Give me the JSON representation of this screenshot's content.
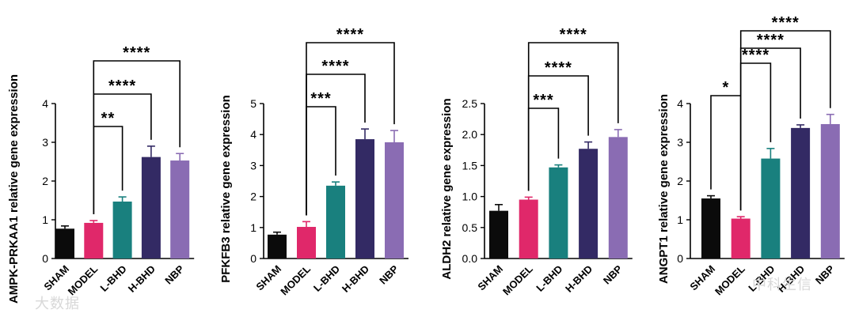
{
  "colors": {
    "SHAM": "#0b0b0b",
    "MODEL": "#e0286a",
    "L-BHD": "#19807e",
    "H-BHD": "#332a64",
    "NBP": "#8a6cb3",
    "axis": "#000000"
  },
  "watermarks": [
    "大数据",
    "中科生信"
  ],
  "chart_data": [
    {
      "type": "bar",
      "ylabel": "AMPK-PRKAA1 relative gene expression",
      "categories": [
        "SHAM",
        "MODEL",
        "L-BHD",
        "H-BHD",
        "NBP"
      ],
      "values": [
        0.77,
        0.92,
        1.47,
        2.62,
        2.53
      ],
      "errors": [
        0.07,
        0.06,
        0.12,
        0.28,
        0.18
      ],
      "ylim": [
        0,
        4
      ],
      "yticks": [
        "0",
        "1",
        "2",
        "3",
        "4"
      ],
      "brackets": [
        {
          "from": 1,
          "to": 2,
          "label": "**"
        },
        {
          "from": 1,
          "to": 3,
          "label": "****"
        },
        {
          "from": 1,
          "to": 4,
          "label": "****"
        }
      ]
    },
    {
      "type": "bar",
      "ylabel": "PFKFB3 relative gene expression",
      "categories": [
        "SHAM",
        "MODEL",
        "L-BHD",
        "H-BHD",
        "NBP"
      ],
      "values": [
        0.77,
        1.02,
        2.35,
        3.85,
        3.75
      ],
      "errors": [
        0.08,
        0.17,
        0.12,
        0.33,
        0.38
      ],
      "ylim": [
        0,
        5
      ],
      "yticks": [
        "0",
        "1",
        "2",
        "3",
        "4",
        "5"
      ],
      "brackets": [
        {
          "from": 1,
          "to": 2,
          "label": "***"
        },
        {
          "from": 1,
          "to": 3,
          "label": "****"
        },
        {
          "from": 1,
          "to": 4,
          "label": "****"
        }
      ]
    },
    {
      "type": "bar",
      "ylabel": "ALDH2 relative gene expression",
      "categories": [
        "SHAM",
        "MODEL",
        "L-BHD",
        "H-BHD",
        "NBP"
      ],
      "values": [
        0.77,
        0.95,
        1.47,
        1.77,
        1.96
      ],
      "errors": [
        0.1,
        0.04,
        0.04,
        0.11,
        0.12
      ],
      "ylim": [
        0,
        2.5
      ],
      "yticks": [
        "0.0",
        "0.5",
        "1.0",
        "1.5",
        "2.0",
        "2.5"
      ],
      "brackets": [
        {
          "from": 1,
          "to": 2,
          "label": "***"
        },
        {
          "from": 1,
          "to": 3,
          "label": "****"
        },
        {
          "from": 1,
          "to": 4,
          "label": "****"
        }
      ]
    },
    {
      "type": "bar",
      "ylabel": "ANGPT1 relative gene expression",
      "categories": [
        "SHAM",
        "MODEL",
        "L-BHD",
        "H-BHD",
        "NBP"
      ],
      "values": [
        1.55,
        1.03,
        2.58,
        3.37,
        3.47
      ],
      "errors": [
        0.07,
        0.05,
        0.26,
        0.08,
        0.25
      ],
      "ylim": [
        0,
        4
      ],
      "yticks": [
        "0",
        "1",
        "2",
        "3",
        "4"
      ],
      "brackets": [
        {
          "from": 0,
          "to": 1,
          "label": "*"
        },
        {
          "from": 1,
          "to": 2,
          "label": "****"
        },
        {
          "from": 1,
          "to": 3,
          "label": "****"
        },
        {
          "from": 1,
          "to": 4,
          "label": "****"
        }
      ]
    }
  ]
}
